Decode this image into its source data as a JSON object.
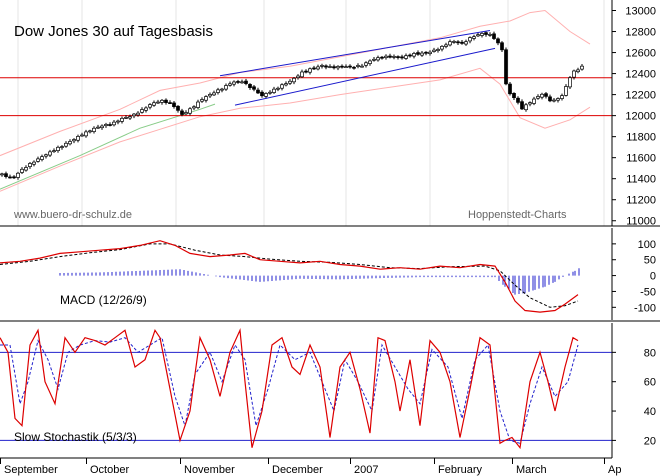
{
  "chart_data": [
    {
      "type": "candlestick",
      "title": "Dow Jones 30 auf Tagesbasis",
      "left_watermark": "www.buero-dr-schulz.de",
      "right_watermark": "Hoppenstedt-Charts",
      "y_ticks": [
        11000,
        11200,
        11400,
        11600,
        11800,
        12000,
        12200,
        12400,
        12600,
        12800,
        13000
      ],
      "ylim": [
        10950,
        13100
      ],
      "x_ticks": [
        "September",
        "October",
        "November",
        "December",
        "2007",
        "February",
        "March",
        "Ap"
      ],
      "horizontal_lines": [
        12360,
        12000
      ],
      "close_path": [
        [
          0,
          11440
        ],
        [
          10,
          11390
        ],
        [
          20,
          11480
        ],
        [
          30,
          11560
        ],
        [
          40,
          11620
        ],
        [
          50,
          11660
        ],
        [
          60,
          11700
        ],
        [
          70,
          11760
        ],
        [
          80,
          11830
        ],
        [
          90,
          11880
        ],
        [
          100,
          11900
        ],
        [
          110,
          11910
        ],
        [
          120,
          11970
        ],
        [
          130,
          12010
        ],
        [
          140,
          12060
        ],
        [
          150,
          12110
        ],
        [
          160,
          12130
        ],
        [
          170,
          12110
        ],
        [
          180,
          12020
        ],
        [
          190,
          12080
        ],
        [
          200,
          12150
        ],
        [
          210,
          12200
        ],
        [
          220,
          12260
        ],
        [
          230,
          12330
        ],
        [
          240,
          12330
        ],
        [
          250,
          12250
        ],
        [
          260,
          12180
        ],
        [
          270,
          12240
        ],
        [
          280,
          12300
        ],
        [
          290,
          12340
        ],
        [
          300,
          12400
        ],
        [
          310,
          12440
        ],
        [
          320,
          12480
        ],
        [
          330,
          12470
        ],
        [
          340,
          12470
        ],
        [
          350,
          12450
        ],
        [
          360,
          12470
        ],
        [
          370,
          12540
        ],
        [
          380,
          12570
        ],
        [
          390,
          12560
        ],
        [
          400,
          12540
        ],
        [
          410,
          12580
        ],
        [
          420,
          12600
        ],
        [
          430,
          12620
        ],
        [
          440,
          12650
        ],
        [
          450,
          12700
        ],
        [
          460,
          12680
        ],
        [
          470,
          12760
        ],
        [
          480,
          12790
        ],
        [
          490,
          12760
        ],
        [
          500,
          12620
        ],
        [
          505,
          12210
        ],
        [
          510,
          12200
        ],
        [
          520,
          12080
        ],
        [
          530,
          12150
        ],
        [
          540,
          12200
        ],
        [
          550,
          12120
        ],
        [
          560,
          12190
        ],
        [
          570,
          12420
        ],
        [
          580,
          12470
        ]
      ],
      "trend_channel": {
        "upper": [
          [
            220,
            12380
          ],
          [
            490,
            12810
          ]
        ],
        "lower": [
          [
            235,
            12100
          ],
          [
            495,
            12640
          ]
        ]
      },
      "bollinger_upper": [
        [
          0,
          11620
        ],
        [
          60,
          11850
        ],
        [
          120,
          12060
        ],
        [
          160,
          12240
        ],
        [
          200,
          12310
        ],
        [
          240,
          12410
        ],
        [
          290,
          12470
        ],
        [
          340,
          12560
        ],
        [
          390,
          12650
        ],
        [
          440,
          12740
        ],
        [
          480,
          12850
        ],
        [
          510,
          12900
        ],
        [
          530,
          12980
        ],
        [
          545,
          13000
        ],
        [
          570,
          12800
        ],
        [
          590,
          12680
        ]
      ],
      "bollinger_lower": [
        [
          0,
          11280
        ],
        [
          60,
          11520
        ],
        [
          120,
          11750
        ],
        [
          160,
          11870
        ],
        [
          200,
          11990
        ],
        [
          240,
          12070
        ],
        [
          290,
          12120
        ],
        [
          340,
          12200
        ],
        [
          390,
          12270
        ],
        [
          440,
          12340
        ],
        [
          480,
          12450
        ],
        [
          500,
          12300
        ],
        [
          520,
          11980
        ],
        [
          545,
          11880
        ],
        [
          570,
          11960
        ],
        [
          590,
          12080
        ]
      ],
      "moving_average": [
        [
          0,
          11300
        ],
        [
          80,
          11620
        ],
        [
          140,
          11880
        ],
        [
          200,
          12060
        ],
        [
          215,
          12110
        ]
      ]
    },
    {
      "type": "line",
      "label": "MACD (12/26/9)",
      "y_ticks": [
        100,
        50,
        0,
        -50,
        -100
      ],
      "ylim": [
        -140,
        150
      ],
      "macd_line": [
        [
          0,
          40
        ],
        [
          20,
          45
        ],
        [
          40,
          55
        ],
        [
          60,
          70
        ],
        [
          80,
          75
        ],
        [
          100,
          80
        ],
        [
          120,
          85
        ],
        [
          140,
          95
        ],
        [
          160,
          110
        ],
        [
          175,
          95
        ],
        [
          190,
          70
        ],
        [
          210,
          60
        ],
        [
          230,
          65
        ],
        [
          245,
          70
        ],
        [
          260,
          50
        ],
        [
          280,
          45
        ],
        [
          300,
          40
        ],
        [
          320,
          45
        ],
        [
          340,
          35
        ],
        [
          360,
          30
        ],
        [
          380,
          20
        ],
        [
          400,
          25
        ],
        [
          420,
          20
        ],
        [
          440,
          30
        ],
        [
          460,
          25
        ],
        [
          480,
          35
        ],
        [
          495,
          30
        ],
        [
          505,
          -20
        ],
        [
          515,
          -80
        ],
        [
          525,
          -110
        ],
        [
          540,
          -115
        ],
        [
          555,
          -110
        ],
        [
          565,
          -90
        ],
        [
          578,
          -60
        ]
      ],
      "signal_line": [
        [
          0,
          35
        ],
        [
          30,
          45
        ],
        [
          60,
          60
        ],
        [
          90,
          72
        ],
        [
          120,
          82
        ],
        [
          150,
          100
        ],
        [
          170,
          100
        ],
        [
          195,
          80
        ],
        [
          220,
          65
        ],
        [
          245,
          60
        ],
        [
          270,
          52
        ],
        [
          300,
          45
        ],
        [
          330,
          42
        ],
        [
          360,
          35
        ],
        [
          390,
          25
        ],
        [
          420,
          22
        ],
        [
          450,
          28
        ],
        [
          485,
          30
        ],
        [
          500,
          15
        ],
        [
          515,
          -30
        ],
        [
          530,
          -70
        ],
        [
          550,
          -100
        ],
        [
          565,
          -95
        ],
        [
          578,
          -80
        ]
      ],
      "histogram": [
        [
          60,
          8
        ],
        [
          100,
          10
        ],
        [
          140,
          15
        ],
        [
          180,
          20
        ],
        [
          220,
          -5
        ],
        [
          260,
          -20
        ],
        [
          300,
          -10
        ],
        [
          340,
          -12
        ],
        [
          380,
          -8
        ],
        [
          420,
          -5
        ],
        [
          460,
          -5
        ],
        [
          495,
          -5
        ],
        [
          505,
          -35
        ],
        [
          515,
          -60
        ],
        [
          525,
          -55
        ],
        [
          535,
          -45
        ],
        [
          545,
          -35
        ],
        [
          555,
          -20
        ],
        [
          565,
          0
        ],
        [
          575,
          15
        ],
        [
          580,
          25
        ]
      ]
    },
    {
      "type": "line",
      "label": "Slow Stochastik (5/3/3)",
      "y_ticks": [
        80,
        60,
        40,
        20
      ],
      "ylim": [
        8,
        100
      ],
      "reference_lines": [
        80,
        20
      ],
      "percent_k": [
        [
          0,
          90
        ],
        [
          8,
          80
        ],
        [
          15,
          35
        ],
        [
          22,
          30
        ],
        [
          30,
          85
        ],
        [
          38,
          95
        ],
        [
          45,
          60
        ],
        [
          55,
          45
        ],
        [
          65,
          90
        ],
        [
          75,
          80
        ],
        [
          85,
          90
        ],
        [
          95,
          88
        ],
        [
          105,
          85
        ],
        [
          115,
          90
        ],
        [
          125,
          95
        ],
        [
          135,
          70
        ],
        [
          145,
          75
        ],
        [
          155,
          95
        ],
        [
          160,
          90
        ],
        [
          170,
          55
        ],
        [
          180,
          20
        ],
        [
          190,
          40
        ],
        [
          200,
          90
        ],
        [
          210,
          75
        ],
        [
          220,
          50
        ],
        [
          230,
          80
        ],
        [
          240,
          95
        ],
        [
          245,
          60
        ],
        [
          252,
          15
        ],
        [
          262,
          40
        ],
        [
          272,
          85
        ],
        [
          282,
          90
        ],
        [
          292,
          70
        ],
        [
          300,
          65
        ],
        [
          310,
          85
        ],
        [
          320,
          70
        ],
        [
          330,
          22
        ],
        [
          340,
          70
        ],
        [
          350,
          80
        ],
        [
          360,
          55
        ],
        [
          370,
          25
        ],
        [
          378,
          90
        ],
        [
          385,
          88
        ],
        [
          395,
          60
        ],
        [
          400,
          40
        ],
        [
          410,
          75
        ],
        [
          420,
          30
        ],
        [
          430,
          88
        ],
        [
          440,
          80
        ],
        [
          450,
          60
        ],
        [
          460,
          22
        ],
        [
          470,
          55
        ],
        [
          480,
          90
        ],
        [
          490,
          85
        ],
        [
          500,
          18
        ],
        [
          505,
          20
        ],
        [
          512,
          22
        ],
        [
          520,
          15
        ],
        [
          530,
          60
        ],
        [
          540,
          80
        ],
        [
          548,
          60
        ],
        [
          555,
          40
        ],
        [
          565,
          70
        ],
        [
          573,
          90
        ],
        [
          578,
          88
        ]
      ],
      "percent_d": [
        [
          0,
          85
        ],
        [
          10,
          85
        ],
        [
          20,
          45
        ],
        [
          28,
          60
        ],
        [
          38,
          88
        ],
        [
          48,
          75
        ],
        [
          58,
          55
        ],
        [
          68,
          80
        ],
        [
          80,
          85
        ],
        [
          95,
          88
        ],
        [
          110,
          87
        ],
        [
          125,
          90
        ],
        [
          138,
          80
        ],
        [
          150,
          85
        ],
        [
          162,
          90
        ],
        [
          175,
          50
        ],
        [
          185,
          30
        ],
        [
          195,
          65
        ],
        [
          210,
          80
        ],
        [
          222,
          60
        ],
        [
          235,
          85
        ],
        [
          245,
          75
        ],
        [
          256,
          30
        ],
        [
          268,
          55
        ],
        [
          280,
          85
        ],
        [
          295,
          75
        ],
        [
          310,
          80
        ],
        [
          322,
          60
        ],
        [
          334,
          40
        ],
        [
          345,
          75
        ],
        [
          358,
          60
        ],
        [
          372,
          40
        ],
        [
          382,
          85
        ],
        [
          395,
          70
        ],
        [
          408,
          55
        ],
        [
          420,
          45
        ],
        [
          432,
          82
        ],
        [
          448,
          70
        ],
        [
          462,
          35
        ],
        [
          475,
          75
        ],
        [
          488,
          85
        ],
        [
          500,
          40
        ],
        [
          510,
          20
        ],
        [
          520,
          18
        ],
        [
          530,
          45
        ],
        [
          542,
          70
        ],
        [
          555,
          50
        ],
        [
          568,
          60
        ],
        [
          578,
          85
        ]
      ]
    }
  ]
}
